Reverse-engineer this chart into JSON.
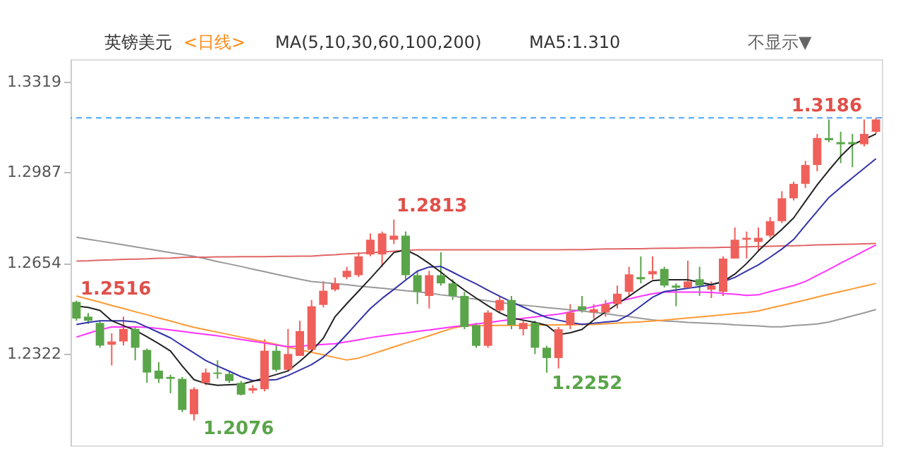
{
  "chart_data": {
    "type": "candlestick",
    "title": "英镑美元",
    "annotations": [
      "<日线>",
      "MA(5,10,30,60,100,200)",
      "MA5:1.310",
      "不显示▼",
      "1.3186",
      "1.2813",
      "1.2516",
      "1.2076",
      "1.2252"
    ],
    "categories": [
      null,
      null,
      null,
      null,
      null,
      null,
      null,
      null,
      null,
      null,
      null,
      null,
      null,
      null,
      null,
      null,
      null,
      null,
      null,
      null,
      null,
      null,
      null,
      null,
      null,
      null,
      null,
      null,
      null,
      null,
      null,
      null,
      null,
      null,
      null,
      null,
      null,
      null,
      null,
      null,
      null,
      null,
      null,
      null,
      null,
      null,
      null,
      null,
      null,
      null,
      null,
      null,
      null,
      null,
      null,
      null,
      null,
      null,
      null,
      null,
      null,
      null,
      null,
      null,
      null,
      null,
      null,
      null,
      null
    ],
    "ohlc": [
      [
        1.2511,
        1.2516,
        1.2442,
        1.245
      ],
      [
        1.2457,
        1.247,
        1.243,
        1.2442
      ],
      [
        1.2434,
        1.244,
        1.2343,
        1.2351
      ],
      [
        1.2354,
        1.2396,
        1.2278,
        1.2366
      ],
      [
        1.2366,
        1.2457,
        1.2351,
        1.2412
      ],
      [
        1.2412,
        1.242,
        1.2297,
        1.2343
      ],
      [
        1.2335,
        1.234,
        1.2214,
        1.2252
      ],
      [
        1.2259,
        1.229,
        1.2214,
        1.2229
      ],
      [
        1.2236,
        1.2244,
        1.2176,
        1.2229
      ],
      [
        1.2229,
        1.2236,
        1.2107,
        1.2115
      ],
      [
        1.2099,
        1.2198,
        1.2076,
        1.2191
      ],
      [
        1.2214,
        1.2267,
        1.2206,
        1.2252
      ],
      [
        1.2252,
        1.2297,
        1.2229,
        1.2247
      ],
      [
        1.2247,
        1.2254,
        1.2214,
        1.2221
      ],
      [
        1.2214,
        1.2221,
        1.2168,
        1.2171
      ],
      [
        1.2186,
        1.2206,
        1.2176,
        1.2195
      ],
      [
        1.2191,
        1.2374,
        1.2183,
        1.2332
      ],
      [
        1.2332,
        1.2358,
        1.2255,
        1.2262
      ],
      [
        1.2262,
        1.2412,
        1.2256,
        1.232
      ],
      [
        1.2313,
        1.2442,
        1.2313,
        1.2404
      ],
      [
        1.2335,
        1.2518,
        1.2328,
        1.2495
      ],
      [
        1.25,
        1.2587,
        1.2491,
        1.2552
      ],
      [
        1.2556,
        1.26,
        1.255,
        1.2579
      ],
      [
        1.2602,
        1.264,
        1.2594,
        1.2625
      ],
      [
        1.2609,
        1.2693,
        1.2602,
        1.2678
      ],
      [
        1.2685,
        1.2762,
        1.2678,
        1.2739
      ],
      [
        1.2685,
        1.2769,
        1.264,
        1.2762
      ],
      [
        1.2739,
        1.2813,
        1.2723,
        1.2754
      ],
      [
        1.2754,
        1.2769,
        1.2594,
        1.2609
      ],
      [
        1.2609,
        1.2625,
        1.2503,
        1.2548
      ],
      [
        1.2533,
        1.2625,
        1.2487,
        1.2609
      ],
      [
        1.2609,
        1.2693,
        1.2571,
        1.2579
      ],
      [
        1.2579,
        1.2594,
        1.2518,
        1.2533
      ],
      [
        1.2533,
        1.2548,
        1.2411,
        1.2419
      ],
      [
        1.2426,
        1.2434,
        1.2343,
        1.235
      ],
      [
        1.235,
        1.248,
        1.2343,
        1.2472
      ],
      [
        1.248,
        1.2533,
        1.2472,
        1.2518
      ],
      [
        1.2518,
        1.2533,
        1.2411,
        1.2426
      ],
      [
        1.2411,
        1.2442,
        1.2388,
        1.2434
      ],
      [
        1.2434,
        1.2442,
        1.232,
        1.2343
      ],
      [
        1.2343,
        1.235,
        1.2252,
        1.2305
      ],
      [
        1.2305,
        1.2419,
        1.2267,
        1.2411
      ],
      [
        1.2426,
        1.2503,
        1.2411,
        1.2472
      ],
      [
        1.2495,
        1.2533,
        1.2472,
        1.248
      ],
      [
        1.2472,
        1.2503,
        1.245,
        1.2484
      ],
      [
        1.2472,
        1.2518,
        1.2457,
        1.2503
      ],
      [
        1.2503,
        1.2571,
        1.2487,
        1.2541
      ],
      [
        1.2548,
        1.264,
        1.2533,
        1.2612
      ],
      [
        1.2602,
        1.2678,
        1.2579,
        1.2594
      ],
      [
        1.2612,
        1.2678,
        1.2594,
        1.2624
      ],
      [
        1.2632,
        1.264,
        1.2564,
        1.2571
      ],
      [
        1.2571,
        1.2579,
        1.2495,
        1.2563
      ],
      [
        1.2563,
        1.2662,
        1.2563,
        1.2586
      ],
      [
        1.2594,
        1.264,
        1.2533,
        1.2571
      ],
      [
        1.2556,
        1.2586,
        1.2525,
        1.2571
      ],
      [
        1.2548,
        1.2678,
        1.2533,
        1.267
      ],
      [
        1.267,
        1.2784,
        1.267,
        1.2739
      ],
      [
        1.2739,
        1.2769,
        1.267,
        1.2746
      ],
      [
        1.2731,
        1.2784,
        1.2701,
        1.2746
      ],
      [
        1.2754,
        1.2822,
        1.2746,
        1.2807
      ],
      [
        1.2807,
        1.2917,
        1.28,
        1.2891
      ],
      [
        1.2891,
        1.2952,
        1.2883,
        1.2944
      ],
      [
        1.2944,
        1.3028,
        1.2929,
        1.3013
      ],
      [
        1.3013,
        1.3127,
        1.299,
        1.3112
      ],
      [
        1.3112,
        1.318,
        1.3097,
        1.3104
      ],
      [
        1.3097,
        1.3135,
        1.302,
        1.3089
      ],
      [
        1.3097,
        1.3127,
        1.3005,
        1.3089
      ],
      [
        1.3089,
        1.318,
        1.3081,
        1.3127
      ],
      [
        1.3135,
        1.3186,
        1.3127,
        1.318
      ]
    ],
    "colors": [
      "#5aa54a",
      "#5aa54a",
      "#5aa54a",
      "#f0605a",
      "#f0605a",
      "#5aa54a",
      "#5aa54a",
      "#5aa54a",
      "#5aa54a",
      "#5aa54a",
      "#f0605a",
      "#f0605a",
      "#5aa54a",
      "#5aa54a",
      "#5aa54a",
      "#f0605a",
      "#f0605a",
      "#5aa54a",
      "#f0605a",
      "#f0605a",
      "#f0605a",
      "#f0605a",
      "#f0605a",
      "#f0605a",
      "#f0605a",
      "#f0605a",
      "#f0605a",
      "#f0605a",
      "#5aa54a",
      "#5aa54a",
      "#f0605a",
      "#5aa54a",
      "#5aa54a",
      "#5aa54a",
      "#5aa54a",
      "#f0605a",
      "#f0605a",
      "#5aa54a",
      "#f0605a",
      "#5aa54a",
      "#5aa54a",
      "#f0605a",
      "#f0605a",
      "#5aa54a",
      "#f0605a",
      "#f0605a",
      "#f0605a",
      "#f0605a",
      "#5aa54a",
      "#f0605a",
      "#5aa54a",
      "#5aa54a",
      "#f0605a",
      "#5aa54a",
      "#f0605a",
      "#f0605a",
      "#f0605a",
      "#f0605a",
      "#f0605a",
      "#f0605a",
      "#f0605a",
      "#f0605a",
      "#f0605a",
      "#f0605a",
      "#5aa54a",
      "#5aa54a",
      "#5aa54a",
      "#f0605a",
      "#f0605a"
    ],
    "series": [
      {
        "type": "line",
        "color": "#999999",
        "values": [
          1.2748,
          1.2741,
          1.2734,
          1.2727,
          1.272,
          1.2713,
          1.2706,
          1.2699,
          1.2692,
          1.2685,
          1.2678,
          1.2669,
          1.2659,
          1.265,
          1.2641,
          1.2631,
          1.2622,
          1.2612,
          1.2603,
          1.2594,
          1.2586,
          1.2582,
          1.2578,
          1.2574,
          1.2569,
          1.2565,
          1.2561,
          1.2557,
          1.2552,
          1.2548,
          1.2543,
          1.2537,
          1.2532,
          1.2526,
          1.2521,
          1.2515,
          1.2509,
          1.2504,
          1.2499,
          1.2495,
          1.249,
          1.2486,
          1.2482,
          1.2478,
          1.2473,
          1.2468,
          1.2462,
          1.2457,
          1.2451,
          1.2445,
          1.2441,
          1.2439,
          1.2436,
          1.2434,
          1.2432,
          1.243,
          1.2427,
          1.2425,
          1.2423,
          1.242,
          1.242,
          1.2424,
          1.2427,
          1.243,
          1.2437,
          1.2448,
          1.246,
          1.2471,
          1.2483
        ]
      },
      {
        "type": "line",
        "color": "#e06666",
        "values": [
          1.2661,
          1.2662,
          1.2664,
          1.2665,
          1.2667,
          1.2668,
          1.2669,
          1.2671,
          1.2672,
          1.2674,
          1.2675,
          1.2675,
          1.2676,
          1.2676,
          1.2677,
          1.2677,
          1.2677,
          1.2678,
          1.2678,
          1.2679,
          1.2679,
          1.2682,
          1.2684,
          1.2687,
          1.2689,
          1.2692,
          1.2694,
          1.2697,
          1.27,
          1.2702,
          1.2702,
          1.2702,
          1.2702,
          1.2702,
          1.2702,
          1.2702,
          1.2702,
          1.2702,
          1.2702,
          1.2702,
          1.2702,
          1.2702,
          1.2703,
          1.2703,
          1.2704,
          1.2705,
          1.2705,
          1.2706,
          1.2706,
          1.2707,
          1.2708,
          1.2708,
          1.2709,
          1.271,
          1.271,
          1.2711,
          1.2712,
          1.2713,
          1.2714,
          1.2715,
          1.2716,
          1.2717,
          1.2718,
          1.272,
          1.2721,
          1.2722,
          1.2723,
          1.2724,
          1.2725
        ]
      },
      {
        "type": "line",
        "color": "#ff9933",
        "values": [
          1.2533,
          1.2521,
          1.251,
          1.2498,
          1.2487,
          1.2475,
          1.2464,
          1.2452,
          1.2441,
          1.2429,
          1.2418,
          1.2409,
          1.24,
          1.2391,
          1.2382,
          1.2373,
          1.2364,
          1.2355,
          1.2345,
          1.2336,
          1.2326,
          1.2317,
          1.2307,
          1.2298,
          1.2305,
          1.2318,
          1.2332,
          1.2346,
          1.236,
          1.2373,
          1.2387,
          1.2401,
          1.2415,
          1.2423,
          1.2424,
          1.2424,
          1.2425,
          1.2425,
          1.2425,
          1.2426,
          1.2426,
          1.2427,
          1.2427,
          1.2428,
          1.2428,
          1.2431,
          1.2433,
          1.2436,
          1.2438,
          1.2441,
          1.2444,
          1.2448,
          1.2452,
          1.2456,
          1.246,
          1.2464,
          1.2468,
          1.2472,
          1.2478,
          1.2488,
          1.2498,
          1.2508,
          1.2518,
          1.2529,
          1.2539,
          1.2549,
          1.2559,
          1.2569,
          1.2579
        ]
      },
      {
        "type": "line",
        "color": "#ff33ff",
        "values": [
          1.2382,
          1.2396,
          1.2409,
          1.2419,
          1.2419,
          1.2419,
          1.2418,
          1.2413,
          1.2408,
          1.2403,
          1.2397,
          1.2392,
          1.2387,
          1.238,
          1.2373,
          1.2367,
          1.236,
          1.2353,
          1.2347,
          1.2349,
          1.2352,
          1.2355,
          1.2358,
          1.2365,
          1.2372,
          1.238,
          1.2386,
          1.2392,
          1.2397,
          1.2403,
          1.2408,
          1.2414,
          1.242,
          1.2425,
          1.243,
          1.2435,
          1.2441,
          1.2446,
          1.2451,
          1.2456,
          1.2461,
          1.2466,
          1.2474,
          1.2484,
          1.2494,
          1.2503,
          1.2513,
          1.2522,
          1.2532,
          1.2541,
          1.2547,
          1.2547,
          1.2547,
          1.2547,
          1.2546,
          1.2542,
          1.2539,
          1.2535,
          1.2537,
          1.2549,
          1.256,
          1.2571,
          1.2586,
          1.2608,
          1.263,
          1.2653,
          1.2675,
          1.2698,
          1.272
        ]
      },
      {
        "type": "line",
        "color": "#3333aa",
        "values": [
          1.2428,
          1.2436,
          1.2442,
          1.2442,
          1.2442,
          1.2438,
          1.2419,
          1.2399,
          1.2379,
          1.2351,
          1.2324,
          1.2296,
          1.2276,
          1.2257,
          1.2237,
          1.2222,
          1.2224,
          1.2226,
          1.2241,
          1.2261,
          1.2281,
          1.2309,
          1.2346,
          1.2392,
          1.244,
          1.2487,
          1.2524,
          1.2557,
          1.2591,
          1.2624,
          1.2639,
          1.2641,
          1.262,
          1.2598,
          1.2577,
          1.2554,
          1.2532,
          1.2511,
          1.2492,
          1.2472,
          1.2454,
          1.2444,
          1.2435,
          1.2429,
          1.2433,
          1.2437,
          1.2441,
          1.2464,
          1.2496,
          1.2528,
          1.2549,
          1.2555,
          1.2561,
          1.2567,
          1.2574,
          1.2585,
          1.2601,
          1.2624,
          1.2647,
          1.2675,
          1.2705,
          1.274,
          1.2792,
          1.2843,
          1.2894,
          1.2931,
          1.2966,
          1.3001,
          1.3036
        ]
      },
      {
        "type": "line",
        "color": "#222222",
        "values": [
          1.2496,
          1.2491,
          1.248,
          1.2442,
          1.2424,
          1.2407,
          1.2383,
          1.2358,
          1.2331,
          1.2276,
          1.2226,
          1.2212,
          1.2205,
          1.2207,
          1.2209,
          1.222,
          1.2232,
          1.2245,
          1.2258,
          1.2293,
          1.2331,
          1.2378,
          1.2457,
          1.2505,
          1.2551,
          1.2597,
          1.2645,
          1.2692,
          1.2702,
          1.2681,
          1.2652,
          1.262,
          1.2586,
          1.2554,
          1.2525,
          1.2497,
          1.2471,
          1.2452,
          1.2444,
          1.2436,
          1.2425,
          1.2391,
          1.2398,
          1.241,
          1.2445,
          1.2474,
          1.2503,
          1.2532,
          1.2562,
          1.2589,
          1.2592,
          1.2592,
          1.2592,
          1.2583,
          1.2574,
          1.2586,
          1.2613,
          1.2652,
          1.2698,
          1.2739,
          1.2777,
          1.2819,
          1.288,
          1.294,
          1.2994,
          1.3045,
          1.3087,
          1.3107,
          1.3127
        ]
      }
    ],
    "ref_lines": [
      {
        "axis": "y",
        "value": 1.3186,
        "color": "#4da6ff",
        "line_style": "dashed"
      }
    ],
    "ylim": [
      1.1985,
      1.3401
    ],
    "yticks": [
      1.2322,
      1.2654,
      1.2987,
      1.3319
    ],
    "tick_labels": "y",
    "line_style": "solid"
  }
}
